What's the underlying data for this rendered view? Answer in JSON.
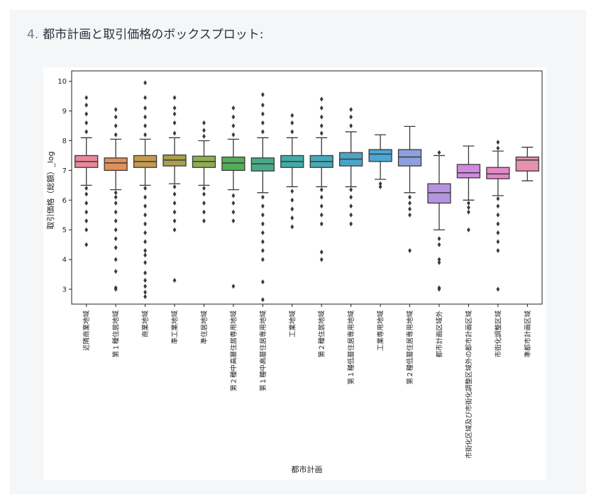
{
  "heading": {
    "number": "4.",
    "text": "都市計画と取引価格のボックスプロット:"
  },
  "chart_data": {
    "type": "box",
    "xlabel": "都市計画",
    "ylabel": "取引価格（総額）_log",
    "ylim": [
      2.5,
      10.35
    ],
    "yticks": [
      3,
      4,
      5,
      6,
      7,
      8,
      9,
      10
    ],
    "categories": [
      "近隣商業地域",
      "第１種住居地域",
      "商業地域",
      "準工業地域",
      "準住居地域",
      "第２種中高層住居専用地域",
      "第１種中高層住居専用地域",
      "工業地域",
      "第２種住居地域",
      "第１種低層住居専用地域",
      "工業専用地域",
      "第２種低層住居専用地域",
      "都市計画区域外",
      "市街化区域及び市街化調整区域外の都市計画区域",
      "市街化調整区域",
      "準都市計画区域"
    ],
    "colors": [
      "#e8889a",
      "#e0905a",
      "#c49a50",
      "#a8a04a",
      "#8fae4e",
      "#55ae5a",
      "#4aaa88",
      "#45aba6",
      "#47aab6",
      "#4aa4c8",
      "#4ca6d6",
      "#8fa0de",
      "#b494e0",
      "#d08ae0",
      "#e488c8",
      "#e890b0"
    ],
    "boxes": [
      {
        "whislo": 6.5,
        "q1": 7.1,
        "med": 7.3,
        "q3": 7.5,
        "whishi": 8.1,
        "outliers": [
          4.5,
          5.0,
          5.3,
          5.6,
          5.9,
          6.2,
          6.4,
          8.3,
          8.6,
          8.9,
          9.2,
          9.45
        ]
      },
      {
        "whislo": 6.35,
        "q1": 7.0,
        "med": 7.25,
        "q3": 7.42,
        "whishi": 8.05,
        "outliers": [
          3.0,
          3.05,
          3.6,
          4.0,
          4.4,
          4.7,
          5.0,
          5.3,
          5.6,
          5.9,
          6.1,
          6.25,
          8.2,
          8.5,
          8.8,
          9.05
        ]
      },
      {
        "whislo": 6.5,
        "q1": 7.1,
        "med": 7.3,
        "q3": 7.5,
        "whishi": 8.05,
        "outliers": [
          2.75,
          2.9,
          3.1,
          3.3,
          3.55,
          3.9,
          4.15,
          4.3,
          4.6,
          4.9,
          5.2,
          5.5,
          5.8,
          6.1,
          6.4,
          8.2,
          8.5,
          8.8,
          9.1,
          9.45,
          9.95
        ]
      },
      {
        "whislo": 6.55,
        "q1": 7.15,
        "med": 7.35,
        "q3": 7.52,
        "whishi": 8.1,
        "outliers": [
          3.3,
          5.0,
          5.3,
          5.6,
          5.9,
          6.2,
          6.45,
          8.25,
          8.6,
          8.9,
          9.1,
          9.45
        ]
      },
      {
        "whislo": 6.5,
        "q1": 7.1,
        "med": 7.3,
        "q3": 7.48,
        "whishi": 8.0,
        "outliers": [
          5.3,
          5.6,
          5.9,
          6.2,
          6.4,
          8.15,
          8.35,
          8.6
        ]
      },
      {
        "whislo": 6.35,
        "q1": 7.0,
        "med": 7.25,
        "q3": 7.45,
        "whishi": 8.05,
        "outliers": [
          3.1,
          5.3,
          5.6,
          5.9,
          6.15,
          8.2,
          8.5,
          8.8,
          9.1
        ]
      },
      {
        "whislo": 6.25,
        "q1": 6.98,
        "med": 7.22,
        "q3": 7.42,
        "whishi": 8.1,
        "outliers": [
          2.65,
          3.25,
          4.0,
          4.3,
          4.6,
          4.9,
          5.2,
          5.5,
          5.8,
          6.1,
          8.3,
          8.6,
          8.9,
          9.2,
          9.55
        ]
      },
      {
        "whislo": 6.45,
        "q1": 7.1,
        "med": 7.3,
        "q3": 7.5,
        "whishi": 8.1,
        "outliers": [
          5.1,
          5.4,
          5.7,
          6.0,
          6.3,
          8.3,
          8.6,
          8.85
        ]
      },
      {
        "whislo": 6.45,
        "q1": 7.1,
        "med": 7.3,
        "q3": 7.5,
        "whishi": 8.1,
        "outliers": [
          4.0,
          4.25,
          5.2,
          5.5,
          5.8,
          6.1,
          6.35,
          8.25,
          8.5,
          8.8,
          9.1,
          9.4
        ]
      },
      {
        "whislo": 6.45,
        "q1": 7.15,
        "med": 7.38,
        "q3": 7.6,
        "whishi": 8.3,
        "outliers": [
          5.2,
          5.5,
          5.8,
          6.1,
          6.35,
          8.5,
          8.8,
          9.05
        ]
      },
      {
        "whislo": 6.7,
        "q1": 7.3,
        "med": 7.55,
        "q3": 7.7,
        "whishi": 8.2,
        "outliers": [
          6.45,
          6.55
        ]
      },
      {
        "whislo": 6.25,
        "q1": 7.15,
        "med": 7.45,
        "q3": 7.7,
        "whishi": 8.48,
        "outliers": [
          4.3,
          5.5,
          5.7,
          5.9,
          6.1
        ]
      },
      {
        "whislo": 5.0,
        "q1": 5.9,
        "med": 6.25,
        "q3": 6.55,
        "whishi": 7.5,
        "outliers": [
          3.0,
          3.05,
          3.9,
          4.0,
          4.5,
          4.7,
          7.6
        ]
      },
      {
        "whislo": 6.0,
        "q1": 6.75,
        "med": 6.92,
        "q3": 7.2,
        "whishi": 7.82,
        "outliers": [
          5.0,
          5.6,
          5.75,
          5.9
        ]
      },
      {
        "whislo": 6.15,
        "q1": 6.72,
        "med": 6.88,
        "q3": 7.1,
        "whishi": 7.65,
        "outliers": [
          3.0,
          4.3,
          4.6,
          4.9,
          5.2,
          5.5,
          5.8,
          6.05,
          7.75,
          7.95
        ]
      },
      {
        "whislo": 6.65,
        "q1": 6.98,
        "med": 7.35,
        "q3": 7.45,
        "whishi": 7.78,
        "outliers": []
      }
    ]
  }
}
